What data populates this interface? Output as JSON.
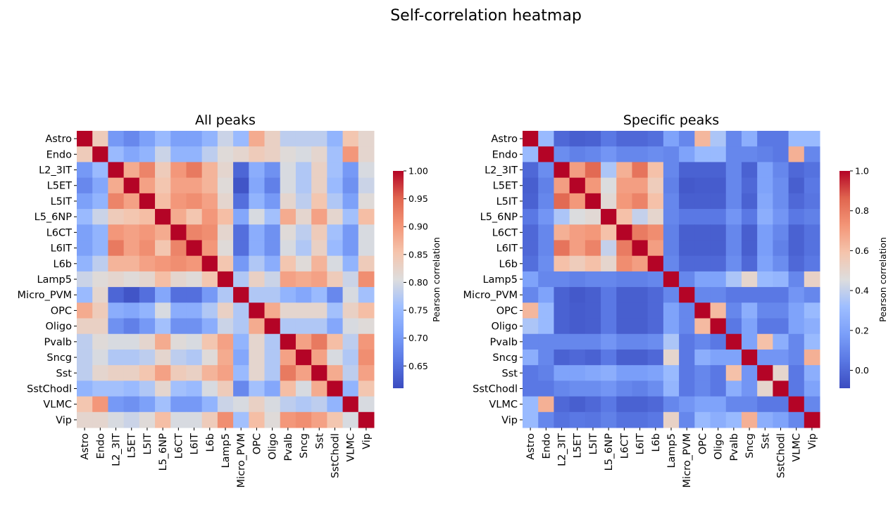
{
  "figure_title": "Self-correlation heatmap",
  "colors": {
    "low": "#3b4cc0",
    "mid": "#dddddd",
    "high": "#b40426"
  },
  "chart_data": [
    {
      "type": "heatmap",
      "title": "All peaks",
      "colormap": "coolwarm",
      "categories": [
        "Astro",
        "Endo",
        "L2_3IT",
        "L5ET",
        "L5IT",
        "L5_6NP",
        "L6CT",
        "L6IT",
        "L6b",
        "Lamp5",
        "Micro_PVM",
        "OPC",
        "Oligo",
        "Pvalb",
        "Sncg",
        "Sst",
        "SstChodl",
        "VLMC",
        "Vip"
      ],
      "vmin": 0.61,
      "vmax": 1.0,
      "colorbar": {
        "label": "Pearson correlation",
        "ticks": [
          0.65,
          0.7,
          0.75,
          0.8,
          0.85,
          0.9,
          0.95,
          1.0
        ],
        "tick_labels": [
          "0.65",
          "0.70",
          "0.75",
          "0.80",
          "0.85",
          "0.90",
          "0.95",
          "1.00"
        ]
      },
      "values": [
        [
          1.0,
          0.84,
          0.7,
          0.68,
          0.71,
          0.75,
          0.71,
          0.71,
          0.74,
          0.79,
          0.75,
          0.88,
          0.83,
          0.78,
          0.78,
          0.78,
          0.74,
          0.85,
          0.82
        ],
        [
          0.84,
          1.0,
          0.75,
          0.72,
          0.74,
          0.79,
          0.74,
          0.74,
          0.78,
          0.81,
          0.82,
          0.84,
          0.83,
          0.81,
          0.8,
          0.82,
          0.76,
          0.9,
          0.82
        ],
        [
          0.7,
          0.75,
          1.0,
          0.88,
          0.92,
          0.84,
          0.9,
          0.93,
          0.87,
          0.82,
          0.64,
          0.73,
          0.69,
          0.8,
          0.77,
          0.83,
          0.76,
          0.7,
          0.8
        ],
        [
          0.68,
          0.72,
          0.88,
          1.0,
          0.89,
          0.85,
          0.89,
          0.89,
          0.87,
          0.81,
          0.62,
          0.72,
          0.67,
          0.8,
          0.77,
          0.83,
          0.75,
          0.69,
          0.79
        ],
        [
          0.71,
          0.74,
          0.92,
          0.89,
          1.0,
          0.86,
          0.9,
          0.91,
          0.89,
          0.82,
          0.65,
          0.74,
          0.7,
          0.82,
          0.78,
          0.85,
          0.77,
          0.71,
          0.81
        ],
        [
          0.75,
          0.79,
          0.84,
          0.85,
          0.86,
          1.0,
          0.88,
          0.85,
          0.9,
          0.86,
          0.72,
          0.8,
          0.76,
          0.88,
          0.82,
          0.89,
          0.82,
          0.76,
          0.86
        ],
        [
          0.71,
          0.74,
          0.9,
          0.89,
          0.9,
          0.88,
          1.0,
          0.92,
          0.91,
          0.82,
          0.65,
          0.73,
          0.69,
          0.81,
          0.78,
          0.84,
          0.76,
          0.7,
          0.8
        ],
        [
          0.71,
          0.74,
          0.93,
          0.89,
          0.91,
          0.85,
          0.92,
          1.0,
          0.9,
          0.81,
          0.65,
          0.73,
          0.69,
          0.8,
          0.77,
          0.83,
          0.75,
          0.7,
          0.8
        ],
        [
          0.74,
          0.78,
          0.87,
          0.87,
          0.89,
          0.9,
          0.91,
          0.9,
          1.0,
          0.85,
          0.7,
          0.77,
          0.73,
          0.85,
          0.81,
          0.87,
          0.8,
          0.74,
          0.84
        ],
        [
          0.79,
          0.81,
          0.82,
          0.81,
          0.82,
          0.86,
          0.82,
          0.81,
          0.85,
          1.0,
          0.77,
          0.83,
          0.79,
          0.89,
          0.88,
          0.89,
          0.84,
          0.79,
          0.91
        ],
        [
          0.75,
          0.82,
          0.64,
          0.62,
          0.65,
          0.72,
          0.65,
          0.65,
          0.7,
          0.77,
          1.0,
          0.77,
          0.77,
          0.74,
          0.72,
          0.75,
          0.68,
          0.8,
          0.76
        ],
        [
          0.88,
          0.84,
          0.73,
          0.72,
          0.74,
          0.8,
          0.73,
          0.73,
          0.77,
          0.83,
          0.77,
          1.0,
          0.88,
          0.82,
          0.82,
          0.82,
          0.76,
          0.83,
          0.86
        ],
        [
          0.83,
          0.83,
          0.69,
          0.67,
          0.7,
          0.76,
          0.69,
          0.69,
          0.73,
          0.79,
          0.77,
          0.88,
          1.0,
          0.77,
          0.77,
          0.77,
          0.72,
          0.8,
          0.81
        ],
        [
          0.78,
          0.81,
          0.8,
          0.8,
          0.82,
          0.88,
          0.81,
          0.8,
          0.85,
          0.89,
          0.74,
          0.82,
          0.77,
          1.0,
          0.89,
          0.93,
          0.86,
          0.78,
          0.9
        ],
        [
          0.78,
          0.8,
          0.77,
          0.77,
          0.78,
          0.82,
          0.78,
          0.77,
          0.81,
          0.88,
          0.72,
          0.82,
          0.77,
          0.89,
          1.0,
          0.89,
          0.8,
          0.77,
          0.91
        ],
        [
          0.78,
          0.82,
          0.83,
          0.83,
          0.85,
          0.89,
          0.84,
          0.83,
          0.87,
          0.89,
          0.75,
          0.82,
          0.77,
          0.93,
          0.89,
          1.0,
          0.88,
          0.78,
          0.89
        ],
        [
          0.74,
          0.76,
          0.76,
          0.75,
          0.77,
          0.82,
          0.76,
          0.75,
          0.8,
          0.84,
          0.68,
          0.76,
          0.72,
          0.86,
          0.8,
          0.88,
          1.0,
          0.74,
          0.85
        ],
        [
          0.85,
          0.9,
          0.7,
          0.69,
          0.71,
          0.76,
          0.7,
          0.7,
          0.74,
          0.79,
          0.8,
          0.83,
          0.8,
          0.78,
          0.77,
          0.78,
          0.74,
          1.0,
          0.8
        ],
        [
          0.82,
          0.82,
          0.8,
          0.79,
          0.81,
          0.86,
          0.8,
          0.8,
          0.84,
          0.91,
          0.76,
          0.86,
          0.81,
          0.9,
          0.91,
          0.89,
          0.85,
          0.8,
          1.0
        ]
      ]
    },
    {
      "type": "heatmap",
      "title": "Specific peaks",
      "colormap": "coolwarm",
      "categories": [
        "Astro",
        "Endo",
        "L2_3IT",
        "L5ET",
        "L5IT",
        "L5_6NP",
        "L6CT",
        "L6IT",
        "L6b",
        "Lamp5",
        "Micro_PVM",
        "OPC",
        "Oligo",
        "Pvalb",
        "Sncg",
        "Sst",
        "SstChodl",
        "VLMC",
        "Vip"
      ],
      "vmin": -0.09,
      "vmax": 1.0,
      "colorbar": {
        "label": "Pearson correlation",
        "ticks": [
          0.0,
          0.2,
          0.4,
          0.6,
          0.8,
          1.0
        ],
        "tick_labels": [
          "0.0",
          "0.2",
          "0.4",
          "0.6",
          "0.8",
          "1.0"
        ]
      },
      "values": [
        [
          1.0,
          0.3,
          0.0,
          -0.03,
          -0.02,
          0.05,
          0.0,
          0.0,
          0.02,
          0.2,
          0.1,
          0.63,
          0.35,
          0.1,
          0.25,
          0.05,
          0.05,
          0.3,
          0.3
        ],
        [
          0.3,
          1.0,
          0.12,
          0.08,
          0.1,
          0.15,
          0.1,
          0.1,
          0.12,
          0.1,
          0.2,
          0.3,
          0.3,
          0.1,
          0.1,
          0.08,
          0.05,
          0.65,
          0.1
        ],
        [
          0.0,
          0.12,
          1.0,
          0.7,
          0.85,
          0.35,
          0.65,
          0.82,
          0.6,
          0.1,
          -0.02,
          -0.02,
          -0.02,
          0.1,
          -0.02,
          0.2,
          0.1,
          0.0,
          0.03
        ],
        [
          -0.03,
          0.08,
          0.7,
          1.0,
          0.72,
          0.45,
          0.7,
          0.7,
          0.55,
          0.08,
          -0.05,
          -0.04,
          -0.04,
          0.1,
          0.0,
          0.2,
          0.12,
          -0.03,
          0.05
        ],
        [
          -0.02,
          0.1,
          0.85,
          0.72,
          1.0,
          0.48,
          0.72,
          0.78,
          0.6,
          0.1,
          -0.03,
          -0.03,
          -0.03,
          0.1,
          -0.02,
          0.22,
          0.12,
          0.0,
          0.04
        ],
        [
          0.05,
          0.15,
          0.35,
          0.45,
          0.48,
          1.0,
          0.6,
          0.4,
          0.5,
          0.1,
          0.05,
          0.05,
          0.05,
          0.15,
          0.05,
          0.25,
          0.15,
          0.05,
          0.08
        ],
        [
          0.0,
          0.1,
          0.65,
          0.7,
          0.72,
          0.6,
          1.0,
          0.8,
          0.75,
          0.08,
          -0.03,
          -0.03,
          -0.03,
          0.1,
          -0.03,
          0.18,
          0.1,
          -0.02,
          0.03
        ],
        [
          0.0,
          0.1,
          0.82,
          0.7,
          0.78,
          0.4,
          0.8,
          1.0,
          0.7,
          0.08,
          -0.03,
          -0.03,
          -0.03,
          0.1,
          -0.03,
          0.18,
          0.08,
          -0.02,
          0.03
        ],
        [
          0.02,
          0.12,
          0.6,
          0.55,
          0.6,
          0.5,
          0.75,
          0.7,
          1.0,
          0.1,
          0.0,
          0.0,
          0.0,
          0.12,
          0.0,
          0.2,
          0.12,
          0.0,
          0.05
        ],
        [
          0.2,
          0.1,
          0.1,
          0.08,
          0.1,
          0.1,
          0.08,
          0.08,
          0.1,
          1.0,
          0.1,
          0.2,
          0.2,
          0.35,
          0.5,
          0.3,
          0.28,
          0.1,
          0.52
        ],
        [
          0.1,
          0.2,
          -0.02,
          -0.05,
          -0.03,
          0.05,
          -0.03,
          -0.03,
          0.0,
          0.1,
          1.0,
          0.1,
          0.1,
          0.05,
          0.05,
          0.05,
          0.05,
          0.15,
          0.1
        ],
        [
          0.63,
          0.3,
          -0.02,
          -0.04,
          -0.03,
          0.05,
          -0.03,
          -0.03,
          0.0,
          0.2,
          0.1,
          1.0,
          0.62,
          0.1,
          0.25,
          0.1,
          0.1,
          0.2,
          0.3
        ],
        [
          0.35,
          0.3,
          -0.02,
          -0.04,
          -0.03,
          0.05,
          -0.03,
          -0.03,
          0.0,
          0.2,
          0.1,
          0.62,
          1.0,
          0.05,
          0.2,
          0.05,
          0.05,
          0.2,
          0.25
        ],
        [
          0.1,
          0.1,
          0.1,
          0.1,
          0.1,
          0.15,
          0.1,
          0.1,
          0.12,
          0.35,
          0.05,
          0.1,
          0.05,
          1.0,
          0.2,
          0.6,
          0.25,
          0.1,
          0.3
        ],
        [
          0.25,
          0.1,
          -0.02,
          0.0,
          -0.02,
          0.05,
          -0.03,
          -0.03,
          0.0,
          0.5,
          0.05,
          0.25,
          0.2,
          0.2,
          1.0,
          0.15,
          0.15,
          0.1,
          0.65
        ],
        [
          0.05,
          0.08,
          0.2,
          0.2,
          0.22,
          0.25,
          0.18,
          0.18,
          0.2,
          0.3,
          0.05,
          0.1,
          0.05,
          0.6,
          0.15,
          1.0,
          0.5,
          0.05,
          0.25
        ],
        [
          0.05,
          0.05,
          0.1,
          0.12,
          0.12,
          0.15,
          0.1,
          0.08,
          0.12,
          0.28,
          0.05,
          0.1,
          0.05,
          0.25,
          0.15,
          0.5,
          1.0,
          0.05,
          0.2
        ],
        [
          0.3,
          0.65,
          0.0,
          -0.03,
          0.0,
          0.05,
          -0.02,
          -0.02,
          0.0,
          0.1,
          0.15,
          0.2,
          0.2,
          0.1,
          0.1,
          0.05,
          0.05,
          1.0,
          0.1
        ],
        [
          0.3,
          0.1,
          0.03,
          0.05,
          0.04,
          0.08,
          0.03,
          0.03,
          0.05,
          0.52,
          0.1,
          0.3,
          0.25,
          0.3,
          0.65,
          0.25,
          0.2,
          0.1,
          1.0
        ]
      ]
    }
  ]
}
